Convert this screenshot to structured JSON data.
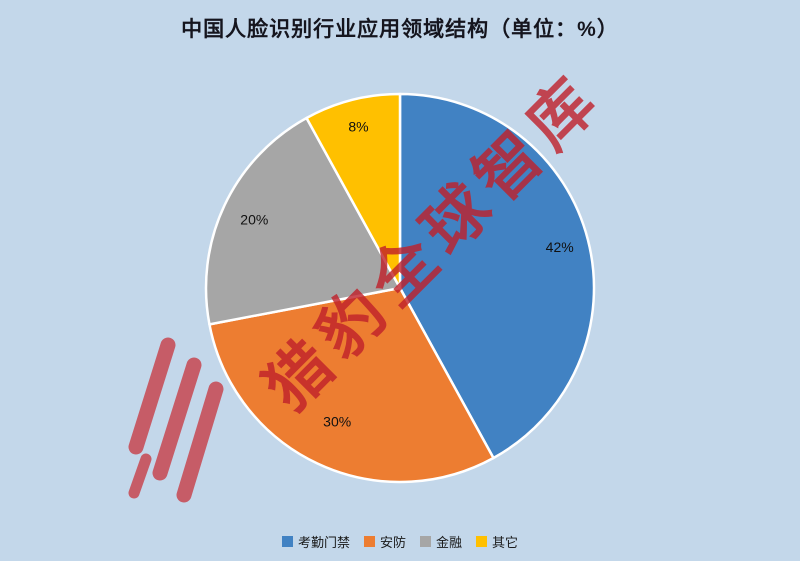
{
  "title": "中国人脸识别行业应用领域结构（单位：%）",
  "watermark": {
    "text": "猎豹全球智库",
    "color": "#c0202a"
  },
  "background_color": "#c3d7ea",
  "chart_data": {
    "type": "pie",
    "title": "中国人脸识别行业应用领域结构（单位：%）",
    "unit": "%",
    "categories": [
      "考勤门禁",
      "安防",
      "金融",
      "其它"
    ],
    "values": [
      42,
      30,
      20,
      8
    ],
    "data_labels": [
      "42%",
      "30%",
      "20%",
      "8%"
    ],
    "colors": [
      "#4182C3",
      "#ED7D31",
      "#A6A6A6",
      "#FFC000"
    ],
    "start_angle_deg": 0,
    "direction": "clockwise",
    "legend_position": "bottom",
    "label_radius": [
      0.85,
      0.76,
      0.83,
      0.86
    ]
  },
  "legend": {
    "items": [
      {
        "label": "考勤门禁",
        "color": "#4182C3"
      },
      {
        "label": "安防",
        "color": "#ED7D31"
      },
      {
        "label": "金融",
        "color": "#A6A6A6"
      },
      {
        "label": "其它",
        "color": "#FFC000"
      }
    ]
  }
}
